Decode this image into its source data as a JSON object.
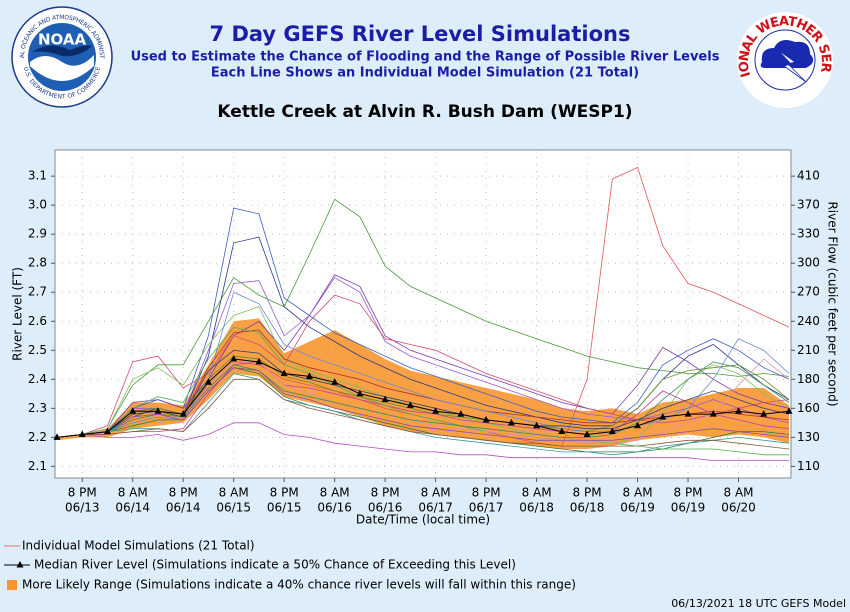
{
  "chart_data": {
    "type": "line",
    "title": "7 Day GEFS River Level Simulations",
    "subtitle": [
      "Used to Estimate the Chance of Flooding and the Range of Possible River Levels",
      "Each Line Shows an Individual Model Simulation (21 Total)"
    ],
    "location": "Kettle Creek at Alvin R. Bush Dam (WESP1)",
    "logos": {
      "noaa": "NOAA",
      "noaa_ring": "NATIONAL OCEANIC AND ATMOSPHERIC ADMINISTRATION",
      "noaa_bottom": "U.S. DEPARTMENT OF COMMERCE",
      "nws": "NATIONAL WEATHER SERVICE"
    },
    "ylabel": "River Level (FT)",
    "y2label": "River Flow (cubic feet per second)",
    "xlabel": "Date/Time (local time)",
    "footer": "06/13/2021 18 UTC GEFS Model",
    "grid": true,
    "ylim": [
      2.06,
      3.19
    ],
    "yticks": [
      2.1,
      2.2,
      2.3,
      2.4,
      2.5,
      2.6,
      2.7,
      2.8,
      2.9,
      {
        "value": 3,
        "label": "3.0"
      },
      3.1
    ],
    "y2ticks": [
      110,
      130,
      160,
      180,
      210,
      240,
      270,
      300,
      330,
      370,
      410
    ],
    "categories": [
      null,
      [
        "8 PM",
        "06/13"
      ],
      null,
      [
        "8 AM",
        "06/14"
      ],
      null,
      [
        "8 PM",
        "06/14"
      ],
      null,
      [
        "8 AM",
        "06/15"
      ],
      null,
      [
        "8 PM",
        "06/15"
      ],
      null,
      [
        "8 AM",
        "06/16"
      ],
      null,
      [
        "8 PM",
        "06/16"
      ],
      null,
      [
        "8 AM",
        "06/17"
      ],
      null,
      [
        "8 PM",
        "06/17"
      ],
      null,
      [
        "8 AM",
        "06/18"
      ],
      null,
      [
        "8 PM",
        "06/18"
      ],
      null,
      [
        "8 AM",
        "06/19"
      ],
      null,
      [
        "8 PM",
        "06/19"
      ],
      null,
      [
        "8 AM",
        "06/20"
      ],
      null,
      null
    ],
    "range": {
      "name": "More Likely Range (Simulations indicate a 40% chance river levels will fall within this range)",
      "color": "#f7962f",
      "upper": [
        2.2,
        2.21,
        2.23,
        2.32,
        2.32,
        2.31,
        2.45,
        2.6,
        2.61,
        2.49,
        2.53,
        2.57,
        2.52,
        2.47,
        2.43,
        2.41,
        2.39,
        2.37,
        2.35,
        2.33,
        2.3,
        2.29,
        2.3,
        2.28,
        2.32,
        2.33,
        2.35,
        2.37,
        2.37,
        2.31
      ],
      "lower": [
        2.19,
        2.2,
        2.2,
        2.23,
        2.24,
        2.25,
        2.33,
        2.42,
        2.41,
        2.34,
        2.32,
        2.3,
        2.27,
        2.24,
        2.22,
        2.21,
        2.2,
        2.19,
        2.18,
        2.17,
        2.16,
        2.16,
        2.17,
        2.19,
        2.2,
        2.21,
        2.2,
        2.21,
        2.2,
        2.18
      ]
    },
    "simulations": {
      "name": "Individual Model Simulations (21 Total)",
      "color": "#e07070",
      "lines": [
        {
          "color": "#e05555",
          "values": [
            2.2,
            2.21,
            2.22,
            2.29,
            2.3,
            2.28,
            2.38,
            2.46,
            2.45,
            2.4,
            2.38,
            2.36,
            2.33,
            2.3,
            2.28,
            2.26,
            2.24,
            2.22,
            2.2,
            2.18,
            2.17,
            2.4,
            3.09,
            3.13,
            2.86,
            2.73,
            2.7,
            2.66,
            2.62,
            2.58
          ]
        },
        {
          "color": "#4a9a3a",
          "values": [
            2.2,
            2.21,
            2.23,
            2.38,
            2.45,
            2.45,
            2.6,
            2.75,
            2.69,
            2.65,
            2.83,
            3.02,
            2.96,
            2.79,
            2.72,
            2.68,
            2.64,
            2.6,
            2.57,
            2.54,
            2.51,
            2.48,
            2.46,
            2.44,
            2.43,
            2.42,
            2.42,
            2.41,
            2.42,
            2.41
          ]
        },
        {
          "color": "#3d5fc0",
          "values": [
            2.2,
            2.21,
            2.22,
            2.3,
            2.33,
            2.3,
            2.55,
            2.99,
            2.97,
            2.68,
            2.62,
            2.56,
            2.52,
            2.48,
            2.44,
            2.41,
            2.38,
            2.35,
            2.32,
            2.29,
            2.27,
            2.26,
            2.25,
            2.32,
            2.45,
            2.5,
            2.54,
            2.5,
            2.44,
            2.4
          ]
        },
        {
          "color": "#2a3a8a",
          "values": [
            2.2,
            2.21,
            2.22,
            2.27,
            2.3,
            2.28,
            2.48,
            2.87,
            2.89,
            2.65,
            2.58,
            2.53,
            2.48,
            2.44,
            2.4,
            2.37,
            2.34,
            2.31,
            2.29,
            2.27,
            2.25,
            2.24,
            2.24,
            2.3,
            2.4,
            2.48,
            2.52,
            2.45,
            2.38,
            2.33
          ]
        },
        {
          "color": "#7a3aa8",
          "values": [
            2.2,
            2.21,
            2.22,
            2.32,
            2.33,
            2.3,
            2.4,
            2.55,
            2.6,
            2.5,
            2.62,
            2.76,
            2.72,
            2.55,
            2.5,
            2.47,
            2.44,
            2.41,
            2.38,
            2.35,
            2.32,
            2.3,
            2.28,
            2.38,
            2.51,
            2.46,
            2.4,
            2.35,
            2.32,
            2.3
          ]
        },
        {
          "color": "#9a5ad0",
          "values": [
            2.2,
            2.21,
            2.22,
            2.3,
            2.3,
            2.28,
            2.5,
            2.73,
            2.74,
            2.55,
            2.62,
            2.75,
            2.7,
            2.53,
            2.48,
            2.45,
            2.42,
            2.39,
            2.36,
            2.33,
            2.3,
            2.28,
            2.27,
            2.26,
            2.28,
            2.3,
            2.33,
            2.3,
            2.27,
            2.25
          ]
        },
        {
          "color": "#d04a7a",
          "values": [
            2.2,
            2.21,
            2.24,
            2.46,
            2.48,
            2.37,
            2.42,
            2.55,
            2.52,
            2.45,
            2.6,
            2.69,
            2.66,
            2.54,
            2.52,
            2.5,
            2.46,
            2.42,
            2.39,
            2.36,
            2.33,
            2.3,
            2.28,
            2.26,
            2.25,
            2.26,
            2.28,
            2.3,
            2.32,
            2.33
          ]
        },
        {
          "color": "#7ac060",
          "values": [
            2.2,
            2.21,
            2.23,
            2.4,
            2.44,
            2.38,
            2.52,
            2.62,
            2.65,
            2.47,
            2.43,
            2.4,
            2.37,
            2.34,
            2.31,
            2.29,
            2.27,
            2.25,
            2.23,
            2.21,
            2.2,
            2.19,
            2.18,
            2.2,
            2.28,
            2.4,
            2.45,
            2.42,
            2.35,
            2.3
          ]
        },
        {
          "color": "#b050c0",
          "values": [
            2.2,
            2.21,
            2.2,
            2.2,
            2.21,
            2.19,
            2.21,
            2.25,
            2.25,
            2.21,
            2.2,
            2.18,
            2.17,
            2.16,
            2.15,
            2.15,
            2.14,
            2.14,
            2.13,
            2.13,
            2.13,
            2.13,
            2.13,
            2.13,
            2.13,
            2.13,
            2.12,
            2.12,
            2.12,
            2.12
          ]
        },
        {
          "color": "#2f7a3a",
          "values": [
            2.2,
            2.21,
            2.22,
            2.24,
            2.26,
            2.26,
            2.36,
            2.44,
            2.42,
            2.34,
            2.31,
            2.29,
            2.27,
            2.25,
            2.23,
            2.21,
            2.2,
            2.19,
            2.18,
            2.17,
            2.16,
            2.15,
            2.15,
            2.15,
            2.16,
            2.18,
            2.2,
            2.22,
            2.22,
            2.21
          ]
        },
        {
          "color": "#3a9a9a",
          "values": [
            2.2,
            2.21,
            2.22,
            2.23,
            2.23,
            2.22,
            2.32,
            2.42,
            2.4,
            2.33,
            2.31,
            2.29,
            2.26,
            2.24,
            2.22,
            2.2,
            2.19,
            2.18,
            2.17,
            2.16,
            2.15,
            2.15,
            2.14,
            2.15,
            2.17,
            2.18,
            2.19,
            2.2,
            2.19,
            2.18
          ]
        },
        {
          "color": "#b03030",
          "values": [
            2.2,
            2.21,
            2.22,
            2.28,
            2.29,
            2.28,
            2.44,
            2.56,
            2.57,
            2.47,
            2.44,
            2.42,
            2.4,
            2.37,
            2.35,
            2.33,
            2.31,
            2.29,
            2.28,
            2.27,
            2.26,
            2.25,
            2.25,
            2.26,
            2.27,
            2.28,
            2.29,
            2.28,
            2.27,
            2.26
          ]
        },
        {
          "color": "#6a8a2a",
          "values": [
            2.2,
            2.21,
            2.22,
            2.29,
            2.3,
            2.28,
            2.4,
            2.48,
            2.47,
            2.41,
            2.39,
            2.36,
            2.34,
            2.32,
            2.3,
            2.28,
            2.27,
            2.26,
            2.25,
            2.24,
            2.23,
            2.22,
            2.24,
            2.3,
            2.4,
            2.43,
            2.44,
            2.45,
            2.4,
            2.33
          ]
        },
        {
          "color": "#6a8ad8",
          "values": [
            2.2,
            2.21,
            2.22,
            2.25,
            2.27,
            2.26,
            2.4,
            2.7,
            2.66,
            2.52,
            2.48,
            2.45,
            2.42,
            2.39,
            2.36,
            2.33,
            2.31,
            2.29,
            2.27,
            2.25,
            2.23,
            2.22,
            2.22,
            2.24,
            2.26,
            2.3,
            2.4,
            2.54,
            2.5,
            2.42
          ]
        },
        {
          "color": "#c040a0",
          "values": [
            2.2,
            2.21,
            2.21,
            2.22,
            2.22,
            2.23,
            2.35,
            2.45,
            2.46,
            2.38,
            2.37,
            2.35,
            2.33,
            2.31,
            2.29,
            2.28,
            2.26,
            2.25,
            2.24,
            2.23,
            2.22,
            2.21,
            2.22,
            2.28,
            2.36,
            2.32,
            2.28,
            2.26,
            2.24,
            2.23
          ]
        },
        {
          "color": "#8a5a3a",
          "values": [
            2.2,
            2.21,
            2.21,
            2.22,
            2.23,
            2.22,
            2.3,
            2.4,
            2.4,
            2.33,
            2.3,
            2.28,
            2.26,
            2.24,
            2.22,
            2.21,
            2.2,
            2.19,
            2.18,
            2.18,
            2.17,
            2.17,
            2.17,
            2.17,
            2.18,
            2.19,
            2.19,
            2.18,
            2.17,
            2.16
          ]
        },
        {
          "color": "#50b050",
          "values": [
            2.2,
            2.21,
            2.22,
            2.3,
            2.34,
            2.32,
            2.47,
            2.58,
            2.56,
            2.45,
            2.42,
            2.38,
            2.34,
            2.31,
            2.28,
            2.26,
            2.24,
            2.22,
            2.21,
            2.2,
            2.19,
            2.18,
            2.18,
            2.17,
            2.16,
            2.16,
            2.16,
            2.15,
            2.14,
            2.14
          ]
        },
        {
          "color": "#30407a",
          "values": [
            2.2,
            2.21,
            2.22,
            2.28,
            2.29,
            2.27,
            2.43,
            2.5,
            2.49,
            2.42,
            2.4,
            2.38,
            2.36,
            2.34,
            2.32,
            2.3,
            2.28,
            2.26,
            2.25,
            2.24,
            2.24,
            2.23,
            2.23,
            2.26,
            2.3,
            2.33,
            2.36,
            2.33,
            2.3,
            2.28
          ]
        },
        {
          "color": "#e090b0",
          "values": [
            2.2,
            2.21,
            2.22,
            2.27,
            2.28,
            2.26,
            2.38,
            2.46,
            2.46,
            2.38,
            2.35,
            2.32,
            2.3,
            2.28,
            2.26,
            2.24,
            2.23,
            2.22,
            2.21,
            2.2,
            2.19,
            2.18,
            2.18,
            2.19,
            2.22,
            2.25,
            2.28,
            2.38,
            2.47,
            2.4
          ]
        },
        {
          "color": "#3a8a5a",
          "values": [
            2.2,
            2.21,
            2.22,
            2.26,
            2.28,
            2.27,
            2.37,
            2.45,
            2.43,
            2.36,
            2.34,
            2.32,
            2.3,
            2.28,
            2.26,
            2.25,
            2.24,
            2.23,
            2.22,
            2.21,
            2.2,
            2.2,
            2.21,
            2.25,
            2.33,
            2.4,
            2.46,
            2.44,
            2.38,
            2.32
          ]
        },
        {
          "color": "#8a4ab0",
          "values": [
            2.2,
            2.21,
            2.22,
            2.27,
            2.28,
            2.26,
            2.36,
            2.44,
            2.43,
            2.35,
            2.33,
            2.3,
            2.28,
            2.26,
            2.24,
            2.23,
            2.22,
            2.21,
            2.2,
            2.19,
            2.19,
            2.19,
            2.19,
            2.2,
            2.21,
            2.22,
            2.23,
            2.22,
            2.21,
            2.2
          ]
        }
      ]
    },
    "median": {
      "name": "Median River Level (Simulations indicate a 50% Chance of Exceeding this Level)",
      "color": "#000000",
      "values": [
        2.2,
        2.21,
        2.22,
        2.29,
        2.29,
        2.28,
        2.39,
        2.47,
        2.46,
        2.42,
        2.41,
        2.39,
        2.35,
        2.33,
        2.31,
        2.29,
        2.28,
        2.26,
        2.25,
        2.24,
        2.22,
        2.21,
        2.22,
        2.24,
        2.27,
        2.28,
        2.28,
        2.29,
        2.28,
        2.29
      ]
    }
  }
}
